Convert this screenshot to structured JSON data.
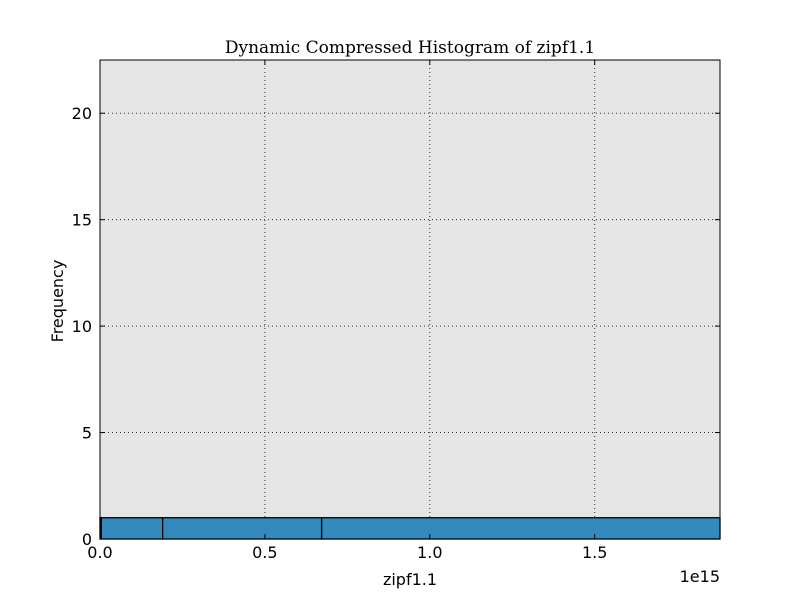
{
  "chart_data": {
    "type": "bar",
    "title": "Dynamic Compressed Histogram of zipf1.1",
    "xlabel": "zipf1.1",
    "ylabel": "Frequency",
    "x_offset_label": "1e15",
    "xlim": [
      0,
      1.88
    ],
    "ylim": [
      0,
      22.5
    ],
    "x_ticks": [
      {
        "value": 0.0,
        "label": "0.0"
      },
      {
        "value": 0.5,
        "label": "0.5"
      },
      {
        "value": 1.0,
        "label": "1.0"
      },
      {
        "value": 1.5,
        "label": "1.5"
      }
    ],
    "y_ticks": [
      {
        "value": 0,
        "label": "0"
      },
      {
        "value": 5,
        "label": "5"
      },
      {
        "value": 10,
        "label": "10"
      },
      {
        "value": 15,
        "label": "15"
      },
      {
        "value": 20,
        "label": "20"
      }
    ],
    "bins": [
      {
        "start": 0.0,
        "end": 0.004,
        "value": 1
      },
      {
        "start": 0.004,
        "end": 0.19,
        "value": 1
      },
      {
        "start": 0.19,
        "end": 0.672,
        "value": 1
      },
      {
        "start": 0.672,
        "end": 1.88,
        "value": 1
      }
    ],
    "grid": true,
    "bar_color": "#348abd",
    "plot_background": "#e5e5e5"
  }
}
